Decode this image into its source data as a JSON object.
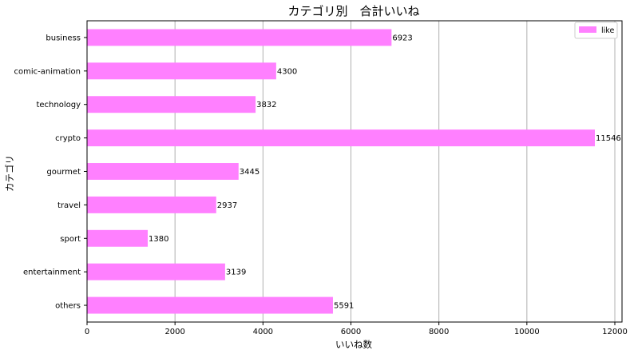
{
  "chart_data": {
    "type": "bar",
    "orientation": "horizontal",
    "title": "カテゴリ別　合計いいね",
    "xlabel": "いいね数",
    "ylabel": "カテゴリ",
    "categories": [
      "business",
      "comic-animation",
      "technology",
      "crypto",
      "gourmet",
      "travel",
      "sport",
      "entertainment",
      "others"
    ],
    "series": [
      {
        "name": "like",
        "values": [
          6923,
          4300,
          3832,
          11546,
          3445,
          2937,
          1380,
          3139,
          5591
        ]
      }
    ],
    "xlim": [
      0,
      12000
    ],
    "xticks": [
      0,
      2000,
      4000,
      6000,
      8000,
      10000,
      12000
    ],
    "grid": "x",
    "legend": "top-right",
    "bar_color": "#ff80ff"
  }
}
